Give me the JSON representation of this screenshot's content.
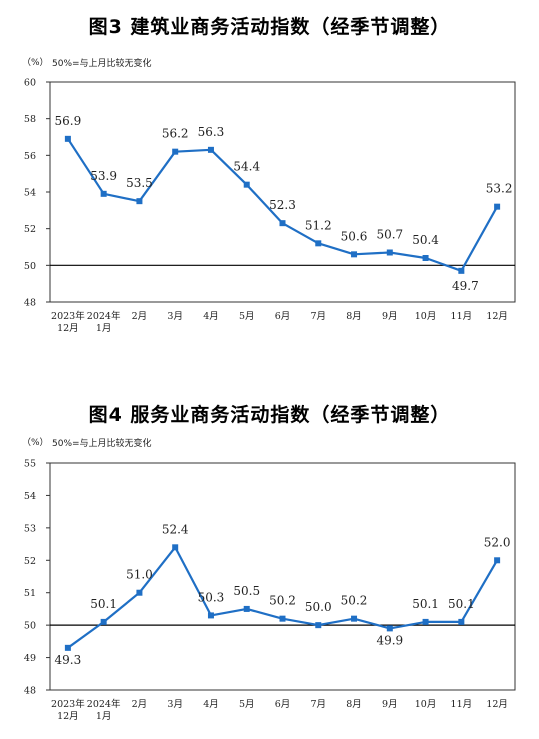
{
  "chart_data": [
    {
      "type": "line",
      "title": "图3  建筑业商务活动指数（经季节调整）",
      "unit": "（%）",
      "note": "50%=与上月比较无变化",
      "categories": [
        [
          "2023年",
          "12月"
        ],
        [
          "2024年",
          "1月"
        ],
        [
          "2月"
        ],
        [
          "3月"
        ],
        [
          "4月"
        ],
        [
          "5月"
        ],
        [
          "6月"
        ],
        [
          "7月"
        ],
        [
          "8月"
        ],
        [
          "9月"
        ],
        [
          "10月"
        ],
        [
          "11月"
        ],
        [
          "12月"
        ]
      ],
      "values": [
        56.9,
        53.9,
        53.5,
        56.2,
        56.3,
        54.4,
        52.3,
        51.2,
        50.6,
        50.7,
        50.4,
        49.7,
        53.2
      ],
      "ylim": [
        48,
        60
      ],
      "yticks": [
        48,
        50,
        52,
        54,
        56,
        58,
        60
      ],
      "reference_line": 50,
      "color": "#1f6fc5",
      "grid": false,
      "legend": "none"
    },
    {
      "type": "line",
      "title": "图4  服务业商务活动指数（经季节调整）",
      "unit": "（%）",
      "note": "50%=与上月比较无变化",
      "categories": [
        [
          "2023年",
          "12月"
        ],
        [
          "2024年",
          "1月"
        ],
        [
          "2月"
        ],
        [
          "3月"
        ],
        [
          "4月"
        ],
        [
          "5月"
        ],
        [
          "6月"
        ],
        [
          "7月"
        ],
        [
          "8月"
        ],
        [
          "9月"
        ],
        [
          "10月"
        ],
        [
          "11月"
        ],
        [
          "12月"
        ]
      ],
      "values": [
        49.3,
        50.1,
        51.0,
        52.4,
        50.3,
        50.5,
        50.2,
        50.0,
        50.2,
        49.9,
        50.1,
        50.1,
        52.0
      ],
      "ylim": [
        48,
        55
      ],
      "yticks": [
        48,
        49,
        50,
        51,
        52,
        53,
        54,
        55
      ],
      "reference_line": 50,
      "color": "#1f6fc5",
      "grid": false,
      "legend": "none"
    }
  ]
}
